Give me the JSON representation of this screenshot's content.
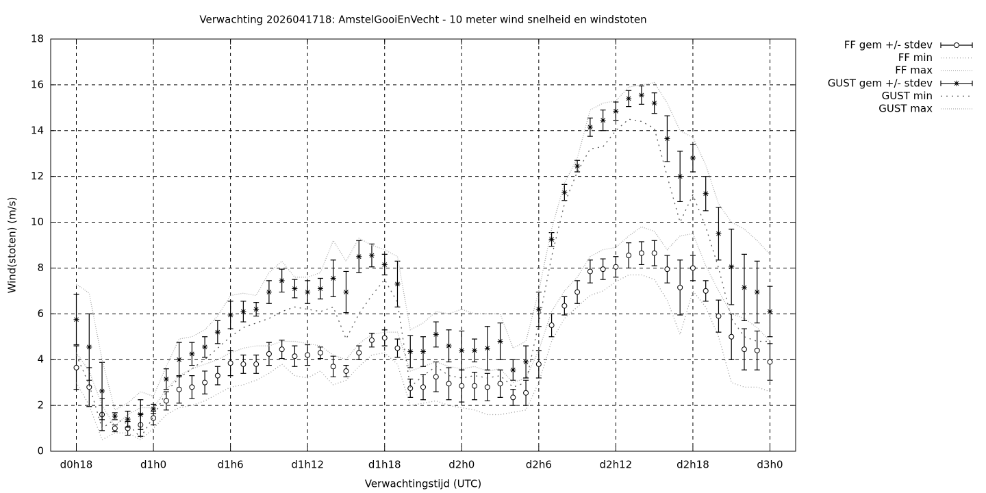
{
  "chart_data": {
    "type": "errorbar",
    "title": "Verwachting 2026041718: AmstelGooiEnVecht - 10 meter wind snelheid en windstoten",
    "x_label": "Verwachtingstijd (UTC)",
    "y_label": "Wind(stoten) (m/s)",
    "x": [
      0,
      1,
      2,
      3,
      4,
      5,
      6,
      7,
      8,
      9,
      10,
      11,
      12,
      13,
      14,
      15,
      16,
      17,
      18,
      19,
      20,
      21,
      22,
      23,
      24,
      25,
      26,
      27,
      28,
      29,
      30,
      31,
      32,
      33,
      34,
      35,
      36,
      37,
      38,
      39,
      40,
      41,
      42,
      43,
      44,
      45,
      46,
      47,
      48,
      49,
      50,
      51,
      52,
      53,
      54
    ],
    "xlim": [
      -2,
      56
    ],
    "xticks": [
      {
        "value": 0,
        "label": "d0h18"
      },
      {
        "value": 6,
        "label": "d1h0"
      },
      {
        "value": 12,
        "label": "d1h6"
      },
      {
        "value": 18,
        "label": "d1h12"
      },
      {
        "value": 24,
        "label": "d1h18"
      },
      {
        "value": 30,
        "label": "d2h0"
      },
      {
        "value": 36,
        "label": "d2h6"
      },
      {
        "value": 42,
        "label": "d2h12"
      },
      {
        "value": 48,
        "label": "d2h18"
      },
      {
        "value": 54,
        "label": "d3h0"
      }
    ],
    "ylim": [
      0,
      18
    ],
    "yticks": [
      0,
      2,
      4,
      6,
      8,
      10,
      12,
      14,
      16,
      18
    ],
    "grid": true,
    "legend": "outside-top-right",
    "series": [
      {
        "name": "FF gem +/- stdev",
        "style": "errorbar",
        "marker": "circle",
        "color": "#000000",
        "values": [
          3.65,
          2.8,
          1.6,
          1.0,
          1.0,
          1.15,
          1.45,
          2.2,
          2.7,
          2.8,
          3.0,
          3.3,
          3.85,
          3.8,
          3.8,
          4.25,
          4.45,
          4.15,
          4.2,
          4.3,
          3.7,
          3.5,
          4.3,
          4.85,
          4.95,
          4.5,
          2.75,
          2.8,
          3.25,
          2.95,
          2.85,
          2.85,
          2.8,
          2.95,
          2.35,
          2.55,
          3.8,
          5.5,
          6.35,
          6.95,
          7.85,
          7.95,
          8.05,
          8.55,
          8.65,
          8.65,
          7.95,
          7.15,
          8.0,
          7.0,
          5.9,
          5.0,
          4.45,
          4.4,
          3.9
        ],
        "errors": [
          0.95,
          0.85,
          0.7,
          0.15,
          0.3,
          0.5,
          0.3,
          0.4,
          0.6,
          0.5,
          0.5,
          0.4,
          0.55,
          0.4,
          0.4,
          0.5,
          0.4,
          0.45,
          0.45,
          0.25,
          0.45,
          0.25,
          0.3,
          0.3,
          0.35,
          0.4,
          0.4,
          0.55,
          0.65,
          0.7,
          0.7,
          0.6,
          0.6,
          0.6,
          0.35,
          0.55,
          0.6,
          0.5,
          0.4,
          0.5,
          0.5,
          0.45,
          0.45,
          0.55,
          0.5,
          0.55,
          0.6,
          1.2,
          0.55,
          0.45,
          0.7,
          1.0,
          0.9,
          0.85,
          0.8
        ]
      },
      {
        "name": "FF min",
        "style": "line",
        "dash": "1 3",
        "color": "#999999",
        "values": [
          3.0,
          2.0,
          0.5,
          0.8,
          0.8,
          0.5,
          1.0,
          1.6,
          1.9,
          2.0,
          2.2,
          2.5,
          2.8,
          2.9,
          3.1,
          3.4,
          3.8,
          3.3,
          3.2,
          3.5,
          2.9,
          3.1,
          3.7,
          4.2,
          4.3,
          3.8,
          2.0,
          2.1,
          2.2,
          2.0,
          1.9,
          1.8,
          1.6,
          1.6,
          1.7,
          1.8,
          3.0,
          4.8,
          5.8,
          6.3,
          6.8,
          7.0,
          7.4,
          7.7,
          7.7,
          7.5,
          6.6,
          5.1,
          7.0,
          6.3,
          5.0,
          3.0,
          2.8,
          2.8,
          2.6
        ]
      },
      {
        "name": "FF max",
        "style": "line",
        "dash": "1 2",
        "color": "#aaaaaa",
        "values": [
          4.3,
          3.5,
          2.0,
          1.1,
          1.6,
          1.9,
          1.9,
          2.7,
          3.3,
          3.6,
          3.8,
          4.0,
          4.3,
          4.5,
          4.6,
          4.6,
          4.8,
          4.8,
          4.7,
          4.6,
          4.2,
          4.0,
          4.7,
          5.1,
          5.2,
          5.2,
          3.5,
          3.7,
          3.9,
          3.7,
          3.6,
          3.7,
          3.5,
          3.6,
          3.0,
          3.2,
          4.4,
          6.1,
          7.0,
          7.6,
          8.5,
          8.8,
          8.9,
          9.4,
          9.8,
          9.6,
          8.8,
          9.4,
          9.5,
          8.1,
          7.0,
          6.0,
          5.8,
          5.4,
          4.8
        ]
      },
      {
        "name": "GUST gem +/- stdev",
        "style": "errorbar",
        "marker": "star",
        "color": "#000000",
        "values": [
          5.75,
          4.55,
          2.63,
          1.53,
          1.4,
          1.6,
          1.85,
          3.15,
          4.0,
          4.25,
          4.55,
          5.2,
          5.95,
          6.1,
          6.2,
          6.95,
          7.45,
          7.1,
          6.95,
          7.1,
          7.55,
          6.95,
          8.5,
          8.55,
          8.15,
          7.3,
          4.35,
          4.35,
          5.1,
          4.6,
          4.4,
          4.4,
          4.5,
          4.8,
          3.55,
          3.9,
          6.2,
          9.25,
          11.3,
          12.45,
          14.15,
          14.45,
          14.85,
          15.4,
          15.55,
          15.2,
          13.65,
          12.0,
          12.8,
          11.25,
          9.5,
          8.05,
          7.15,
          6.95,
          6.1
        ],
        "errors": [
          1.1,
          1.45,
          1.25,
          0.15,
          0.35,
          0.65,
          0.2,
          0.45,
          0.75,
          0.5,
          0.45,
          0.5,
          0.6,
          0.45,
          0.3,
          0.5,
          0.5,
          0.4,
          0.5,
          0.45,
          0.8,
          0.9,
          0.7,
          0.5,
          0.45,
          1.0,
          0.7,
          0.65,
          0.55,
          0.7,
          0.85,
          0.5,
          0.95,
          0.8,
          0.45,
          0.7,
          0.75,
          0.3,
          0.35,
          0.25,
          0.4,
          0.45,
          0.4,
          0.35,
          0.4,
          0.45,
          1.0,
          1.1,
          0.6,
          0.75,
          1.15,
          1.65,
          1.45,
          1.35,
          1.1
        ]
      },
      {
        "name": "GUST min",
        "style": "line",
        "dash": "2 6",
        "color": "#555555",
        "values": [
          4.2,
          2.9,
          1.0,
          1.4,
          1.2,
          0.6,
          1.5,
          2.6,
          3.2,
          3.6,
          4.0,
          4.5,
          5.0,
          5.4,
          5.6,
          5.8,
          6.1,
          6.3,
          6.2,
          6.1,
          6.3,
          4.9,
          6.0,
          6.8,
          7.5,
          6.5,
          2.8,
          3.3,
          3.7,
          3.3,
          3.2,
          3.3,
          3.2,
          3.3,
          2.8,
          3.0,
          5.6,
          8.5,
          10.8,
          12.2,
          13.2,
          13.3,
          14.0,
          14.5,
          14.4,
          14.1,
          12.0,
          10.0,
          11.2,
          9.8,
          8.0,
          5.8,
          5.0,
          4.8,
          4.8
        ]
      },
      {
        "name": "GUST max",
        "style": "line",
        "dash": "1 2",
        "color": "#aaaaaa",
        "values": [
          7.3,
          6.9,
          4.0,
          1.8,
          2.1,
          2.6,
          2.4,
          3.7,
          4.9,
          5.0,
          5.3,
          5.9,
          6.8,
          6.9,
          6.8,
          7.8,
          8.3,
          7.6,
          7.6,
          7.8,
          9.2,
          8.3,
          9.3,
          9.0,
          8.8,
          8.5,
          5.3,
          5.6,
          6.1,
          6.0,
          6.2,
          6.0,
          6.0,
          6.0,
          4.5,
          4.8,
          7.0,
          9.7,
          11.7,
          12.8,
          14.9,
          15.2,
          15.3,
          15.9,
          16.0,
          16.1,
          15.2,
          14.0,
          13.7,
          12.5,
          10.8,
          10.0,
          9.7,
          9.2,
          8.6
        ]
      }
    ]
  }
}
